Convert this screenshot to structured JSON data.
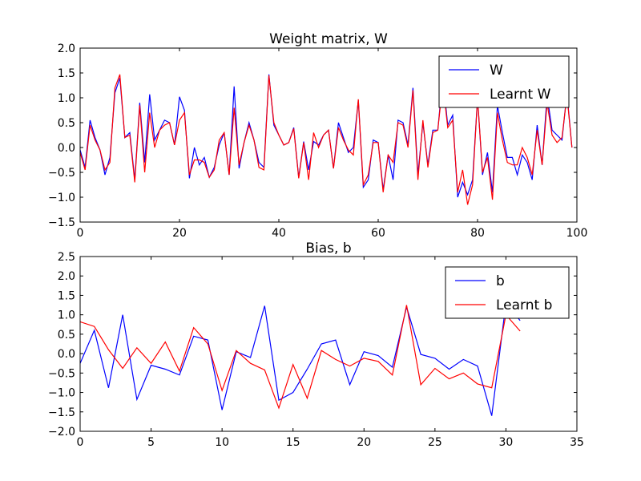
{
  "chart_data": [
    {
      "type": "line",
      "title": "Weight matrix, W",
      "xlabel": "",
      "ylabel": "",
      "xlim": [
        0,
        100
      ],
      "ylim": [
        -1.5,
        2.0
      ],
      "xticks": [
        0,
        20,
        40,
        60,
        80,
        100
      ],
      "yticks": [
        -1.5,
        -1.0,
        -0.5,
        0.0,
        0.5,
        1.0,
        1.5,
        2.0
      ],
      "xtick_labels": [
        "0",
        "20",
        "40",
        "60",
        "80",
        "100"
      ],
      "ytick_labels": [
        "−1.5",
        "−1.0",
        "−0.5",
        "0.0",
        "0.5",
        "1.0",
        "1.5",
        "2.0"
      ],
      "grid": false,
      "legend_position": "top-right",
      "x": [
        0,
        1,
        2,
        3,
        4,
        5,
        6,
        7,
        8,
        9,
        10,
        11,
        12,
        13,
        14,
        15,
        16,
        17,
        18,
        19,
        20,
        21,
        22,
        23,
        24,
        25,
        26,
        27,
        28,
        29,
        30,
        31,
        32,
        33,
        34,
        35,
        36,
        37,
        38,
        39,
        40,
        41,
        42,
        43,
        44,
        45,
        46,
        47,
        48,
        49,
        50,
        51,
        52,
        53,
        54,
        55,
        56,
        57,
        58,
        59,
        60,
        61,
        62,
        63,
        64,
        65,
        66,
        67,
        68,
        69,
        70,
        71,
        72,
        73,
        74,
        75,
        76,
        77,
        78,
        79,
        80,
        81,
        82,
        83,
        84,
        85,
        86,
        87,
        88,
        89,
        90,
        91,
        92,
        93,
        94,
        95,
        96,
        97,
        98,
        99
      ],
      "series": [
        {
          "name": "W",
          "color": "#0000ff",
          "values": [
            -0.05,
            -0.4,
            0.55,
            0.2,
            -0.05,
            -0.55,
            -0.2,
            1.1,
            1.4,
            0.2,
            0.3,
            -0.65,
            0.9,
            -0.3,
            1.07,
            0.15,
            0.35,
            0.55,
            0.5,
            0.05,
            1.02,
            0.75,
            -0.62,
            0.0,
            -0.35,
            -0.2,
            -0.6,
            -0.4,
            0.05,
            0.3,
            -0.55,
            1.23,
            -0.42,
            0.1,
            0.5,
            0.15,
            -0.3,
            -0.4,
            1.47,
            0.45,
            0.25,
            0.05,
            0.1,
            0.4,
            -0.6,
            0.12,
            -0.45,
            0.12,
            0.05,
            0.25,
            0.35,
            -0.42,
            0.5,
            0.2,
            -0.1,
            0.0,
            0.95,
            -0.8,
            -0.65,
            0.15,
            0.1,
            -0.85,
            -0.15,
            -0.65,
            0.55,
            0.5,
            0.05,
            1.2,
            -0.55,
            0.5,
            -0.35,
            0.35,
            0.35,
            1.42,
            0.45,
            0.65,
            -1.0,
            -0.7,
            -0.95,
            -0.65,
            1.0,
            -0.55,
            -0.1,
            -0.9,
            0.85,
            0.3,
            -0.2,
            -0.2,
            -0.55,
            -0.15,
            -0.3,
            -0.65,
            0.45,
            -0.35,
            1.05,
            0.35,
            0.25,
            0.15,
            1.1,
            0.0
          ]
        },
        {
          "name": "Learnt W",
          "color": "#ff0000",
          "values": [
            -0.1,
            -0.45,
            0.45,
            0.15,
            -0.05,
            -0.45,
            -0.3,
            1.2,
            1.47,
            0.2,
            0.25,
            -0.7,
            0.85,
            -0.5,
            0.7,
            0.0,
            0.35,
            0.45,
            0.5,
            0.05,
            0.55,
            0.7,
            -0.55,
            -0.25,
            -0.25,
            -0.3,
            -0.6,
            -0.45,
            0.15,
            0.3,
            -0.55,
            0.8,
            -0.35,
            0.1,
            0.45,
            0.15,
            -0.4,
            -0.45,
            1.45,
            0.5,
            0.25,
            0.05,
            0.1,
            0.38,
            -0.62,
            0.1,
            -0.65,
            0.3,
            0.0,
            0.25,
            0.35,
            -0.42,
            0.4,
            0.15,
            -0.05,
            -0.15,
            0.97,
            -0.75,
            -0.55,
            0.1,
            0.1,
            -0.9,
            -0.15,
            -0.3,
            0.5,
            0.45,
            0.0,
            1.15,
            -0.65,
            0.55,
            -0.4,
            0.3,
            0.35,
            1.3,
            0.4,
            0.55,
            -0.9,
            -0.45,
            -1.15,
            -0.75,
            1.0,
            -0.5,
            -0.2,
            -1.05,
            0.7,
            0.15,
            -0.3,
            -0.35,
            -0.35,
            0.0,
            -0.2,
            -0.55,
            0.35,
            -0.35,
            0.9,
            0.25,
            0.1,
            0.2,
            1.05,
            0.0
          ]
        }
      ]
    },
    {
      "type": "line",
      "title": "Bias, b",
      "xlabel": "",
      "ylabel": "",
      "xlim": [
        0,
        35
      ],
      "ylim": [
        -2.0,
        2.5
      ],
      "xticks": [
        0,
        5,
        10,
        15,
        20,
        25,
        30,
        35
      ],
      "yticks": [
        -2.0,
        -1.5,
        -1.0,
        -0.5,
        0.0,
        0.5,
        1.0,
        1.5,
        2.0,
        2.5
      ],
      "xtick_labels": [
        "0",
        "5",
        "10",
        "15",
        "20",
        "25",
        "30",
        "35"
      ],
      "ytick_labels": [
        "−2.0",
        "−1.5",
        "−1.0",
        "−0.5",
        "0.0",
        "0.5",
        "1.0",
        "1.5",
        "2.0",
        "2.5"
      ],
      "grid": false,
      "legend_position": "top-right",
      "x": [
        0,
        1,
        2,
        3,
        4,
        5,
        6,
        7,
        8,
        9,
        10,
        11,
        12,
        13,
        14,
        15,
        16,
        17,
        18,
        19,
        20,
        21,
        22,
        23,
        24,
        25,
        26,
        27,
        28,
        29,
        30,
        31
      ],
      "series": [
        {
          "name": "b",
          "color": "#0000ff",
          "values": [
            -0.25,
            0.6,
            -0.88,
            1.0,
            -1.18,
            -0.3,
            -0.4,
            -0.55,
            0.45,
            0.35,
            -1.45,
            0.05,
            -0.1,
            1.23,
            -1.2,
            -1.0,
            -0.4,
            0.25,
            0.35,
            -0.8,
            0.05,
            -0.05,
            -0.35,
            1.2,
            -0.02,
            -0.12,
            -0.4,
            -0.15,
            -0.32,
            -1.6,
            1.3,
            0.85
          ]
        },
        {
          "name": "Learnt b",
          "color": "#ff0000",
          "values": [
            0.82,
            0.7,
            0.1,
            -0.38,
            0.15,
            -0.25,
            0.3,
            -0.45,
            0.67,
            0.25,
            -0.95,
            0.08,
            -0.25,
            -0.42,
            -1.4,
            -0.28,
            -1.15,
            0.08,
            -0.15,
            -0.32,
            -0.12,
            -0.2,
            -0.55,
            1.25,
            -0.8,
            -0.38,
            -0.65,
            -0.5,
            -0.78,
            -0.88,
            1.0,
            0.58
          ]
        }
      ]
    }
  ]
}
